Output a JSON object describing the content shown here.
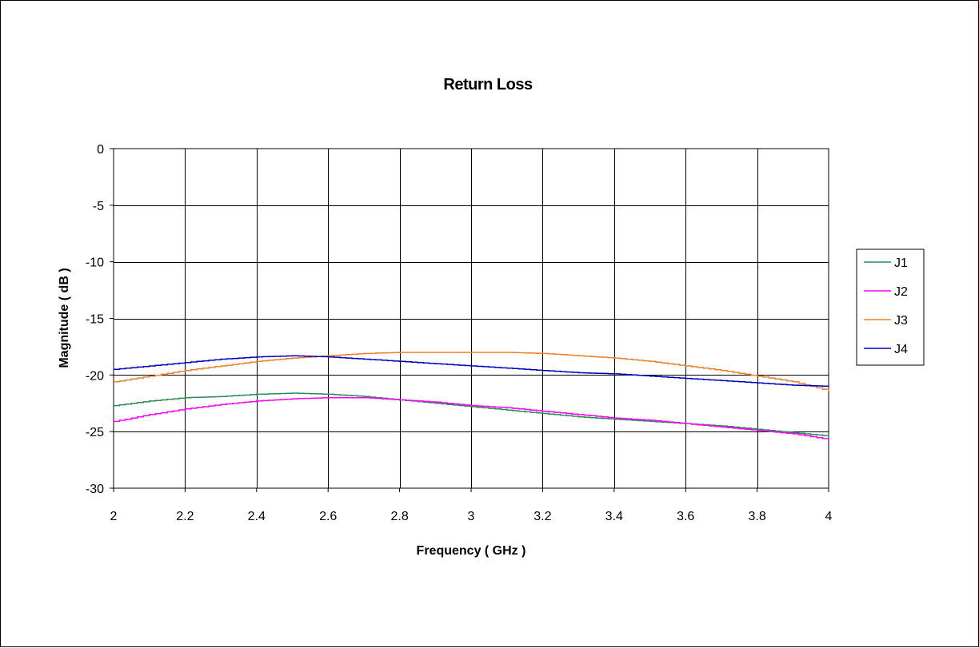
{
  "chart_data": {
    "type": "line",
    "title": "Return Loss",
    "xlabel": "Frequency ( GHz )",
    "ylabel": "Magnitude ( dB )",
    "xlim": [
      2,
      4
    ],
    "ylim": [
      -30,
      0
    ],
    "xticks": [
      2,
      2.2,
      2.4,
      2.6,
      2.8,
      3,
      3.2,
      3.4,
      3.6,
      3.8,
      4
    ],
    "xtick_labels": [
      "2",
      "2.2",
      "2.4",
      "2.6",
      "2.8",
      "3",
      "3.2",
      "3.4",
      "3.6",
      "3.8",
      "4"
    ],
    "yticks": [
      0,
      -5,
      -10,
      -15,
      -20,
      -25,
      -30
    ],
    "ytick_labels": [
      "0",
      "-5",
      "-10",
      "-15",
      "-20",
      "-25",
      "-30"
    ],
    "grid": true,
    "legend_position": "right",
    "x": [
      2.0,
      2.1,
      2.2,
      2.3,
      2.4,
      2.5,
      2.6,
      2.7,
      2.8,
      2.9,
      3.0,
      3.1,
      3.2,
      3.3,
      3.4,
      3.5,
      3.6,
      3.7,
      3.8,
      3.9,
      4.0
    ],
    "series": [
      {
        "name": "J1",
        "color": "#2e8b57",
        "values": [
          -22.7,
          -22.3,
          -22.0,
          -21.9,
          -21.7,
          -21.6,
          -21.7,
          -21.9,
          -22.2,
          -22.5,
          -22.8,
          -23.1,
          -23.4,
          -23.7,
          -23.9,
          -24.1,
          -24.3,
          -24.5,
          -24.8,
          -25.1,
          -25.4
        ]
      },
      {
        "name": "J2",
        "color": "#ff00ff",
        "values": [
          -24.1,
          -23.5,
          -23.0,
          -22.6,
          -22.3,
          -22.1,
          -22.0,
          -22.0,
          -22.2,
          -22.4,
          -22.7,
          -22.9,
          -23.2,
          -23.5,
          -23.8,
          -24.0,
          -24.3,
          -24.6,
          -24.9,
          -25.2,
          -25.7
        ]
      },
      {
        "name": "J3",
        "color": "#f07f2e",
        "values": [
          -20.6,
          -20.1,
          -19.6,
          -19.2,
          -18.8,
          -18.5,
          -18.3,
          -18.1,
          -18.0,
          -18.0,
          -18.0,
          -18.0,
          -18.1,
          -18.3,
          -18.5,
          -18.8,
          -19.2,
          -19.6,
          -20.1,
          -20.6,
          -21.4
        ]
      },
      {
        "name": "J4",
        "color": "#0000c0",
        "values": [
          -19.5,
          -19.2,
          -18.9,
          -18.6,
          -18.4,
          -18.3,
          -18.4,
          -18.6,
          -18.8,
          -19.0,
          -19.2,
          -19.4,
          -19.6,
          -19.8,
          -19.9,
          -20.1,
          -20.3,
          -20.5,
          -20.7,
          -20.9,
          -21.0
        ]
      }
    ]
  }
}
